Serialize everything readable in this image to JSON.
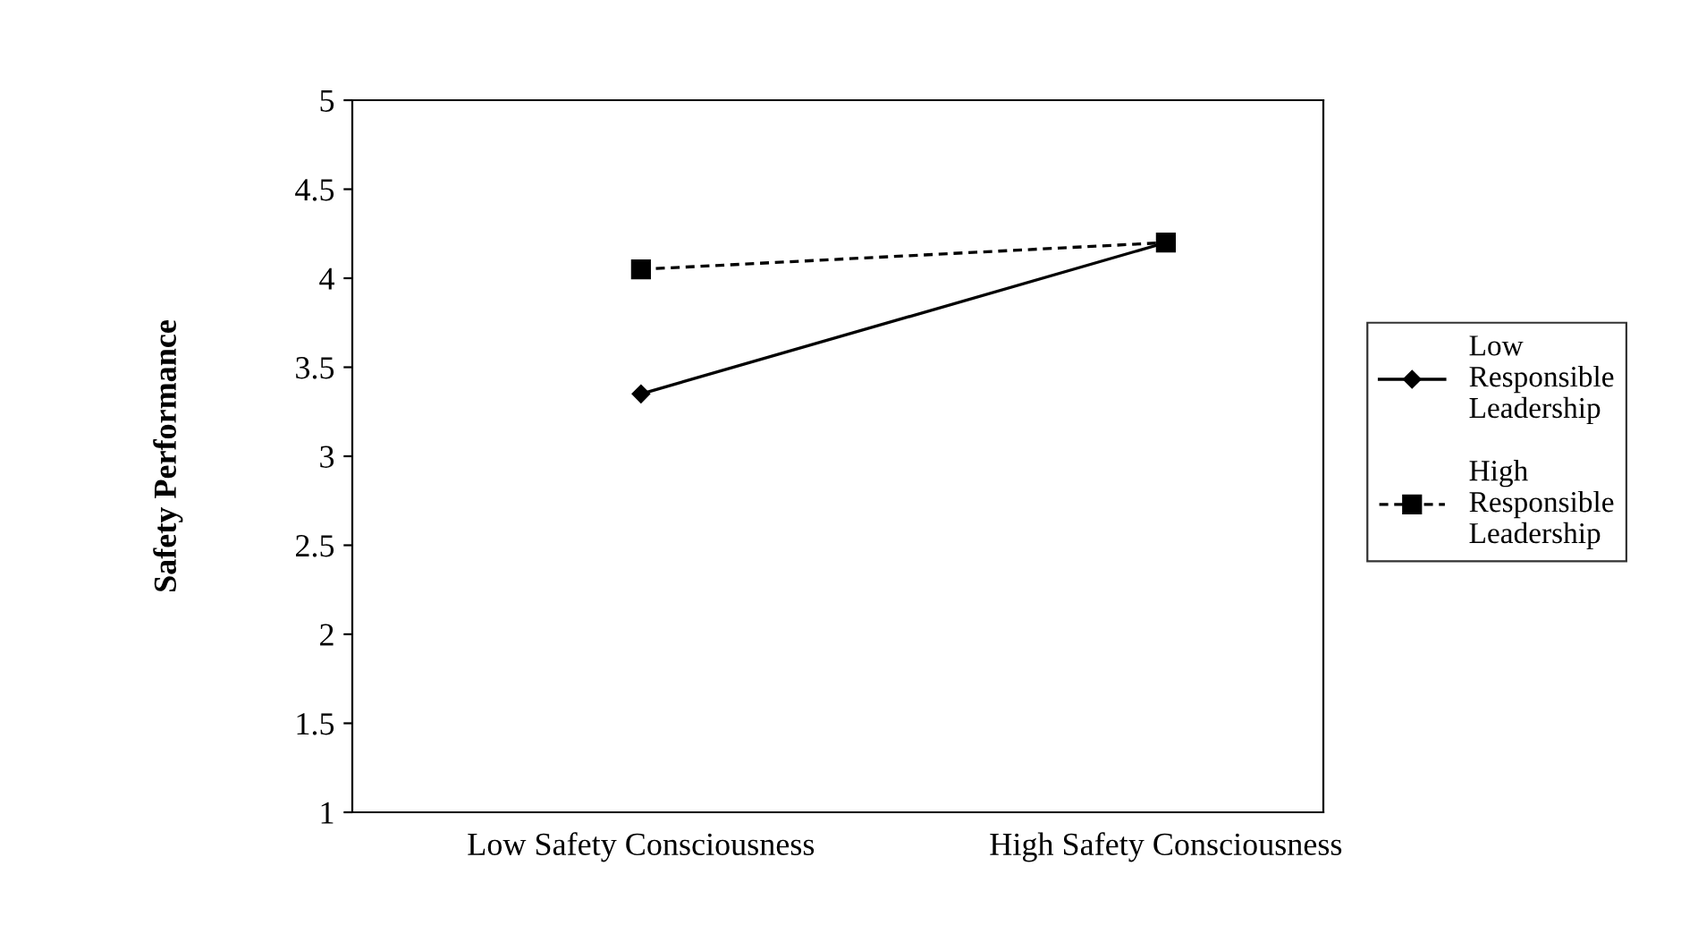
{
  "chart_data": {
    "type": "line",
    "ylabel": "Safety Performance",
    "categories": [
      "Low Safety Consciousness",
      "High Safety Consciousness"
    ],
    "series": [
      {
        "name": "Low Responsible Leadership",
        "color": "#000000",
        "values": [
          3.35,
          4.2
        ],
        "marker": "diamond",
        "line_style": "solid"
      },
      {
        "name": "High Responsible Leadership",
        "color": "#000000",
        "values": [
          4.05,
          4.2
        ],
        "marker": "square",
        "line_style": "dashed"
      }
    ],
    "ylim": [
      1,
      5
    ],
    "yticks": [
      1,
      1.5,
      2,
      2.5,
      3,
      3.5,
      4,
      4.5,
      5
    ],
    "grid": false,
    "legend": "right"
  }
}
